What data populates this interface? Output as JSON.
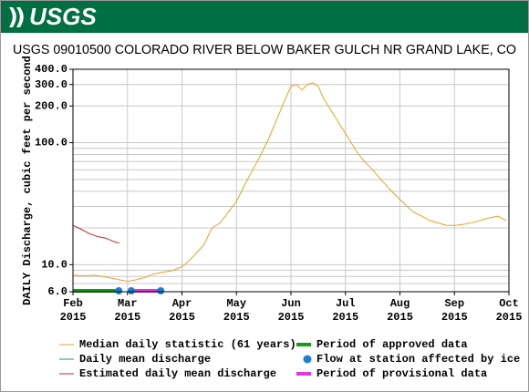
{
  "logo": "USGS",
  "chart_data": {
    "type": "line",
    "title": "USGS 09010500 COLORADO RIVER BELOW BAKER GULCH NR GRAND LAKE, CO",
    "y_label": "DAILY Discharge, cubic feet per second",
    "log_y": true,
    "grid": true,
    "xlim": [
      2,
      10
    ],
    "xticks": [
      {
        "value": 2,
        "label": "Feb 2015"
      },
      {
        "value": 3,
        "label": "Mar 2015"
      },
      {
        "value": 4,
        "label": "Apr 2015"
      },
      {
        "value": 5,
        "label": "May 2015"
      },
      {
        "value": 6,
        "label": "Jun 2015"
      },
      {
        "value": 7,
        "label": "Jul 2015"
      },
      {
        "value": 8,
        "label": "Aug 2015"
      },
      {
        "value": 9,
        "label": "Sep 2015"
      },
      {
        "value": 10,
        "label": "Oct 2015"
      }
    ],
    "ylim": [
      6,
      400
    ],
    "yticks": [
      {
        "value": 6,
        "label": "6.0"
      },
      {
        "value": 10,
        "label": "10.0"
      },
      {
        "value": 100,
        "label": "100.0"
      },
      {
        "value": 200,
        "label": "200.0"
      },
      {
        "value": 300,
        "label": "300.0"
      },
      {
        "value": 400,
        "label": "400.0"
      }
    ],
    "ygrid": [
      7,
      8,
      9,
      20,
      30,
      40,
      50,
      60,
      70,
      80,
      90
    ],
    "series": [
      {
        "name": "Median daily statistic (61 years)",
        "color": "#e5a323",
        "x": [
          2.0,
          2.2,
          2.4,
          2.6,
          2.8,
          3.0,
          3.15,
          3.3,
          3.45,
          3.6,
          3.8,
          4.0,
          4.15,
          4.3,
          4.4,
          4.55,
          4.7,
          4.85,
          5.0,
          5.15,
          5.3,
          5.45,
          5.6,
          5.75,
          5.9,
          6.0,
          6.1,
          6.2,
          6.3,
          6.4,
          6.5,
          6.6,
          6.75,
          6.9,
          7.05,
          7.2,
          7.35,
          7.5,
          7.65,
          7.8,
          7.95,
          8.1,
          8.25,
          8.4,
          8.55,
          8.7,
          8.85,
          9.0,
          9.2,
          9.4,
          9.6,
          9.8,
          9.95
        ],
        "values": [
          8.2,
          8.1,
          8.2,
          7.9,
          7.6,
          7.3,
          7.5,
          7.8,
          8.3,
          8.6,
          8.9,
          9.6,
          11,
          13,
          14.5,
          20,
          22,
          27,
          33,
          45,
          60,
          80,
          110,
          160,
          230,
          290,
          300,
          270,
          300,
          310,
          290,
          230,
          180,
          140,
          110,
          85,
          70,
          60,
          50,
          42,
          36,
          31,
          27,
          25,
          23,
          22,
          21,
          21,
          21.5,
          22.5,
          24,
          25,
          23
        ]
      },
      {
        "name": "Daily mean discharge",
        "color": "#1f8f8f",
        "x": [],
        "values": []
      },
      {
        "name": "Estimated daily mean discharge",
        "color": "#c0252f",
        "x": [
          2.0,
          2.05,
          2.15,
          2.3,
          2.45,
          2.6,
          2.75,
          2.85
        ],
        "values": [
          21,
          20.5,
          19.5,
          18,
          17,
          16.5,
          15.5,
          15
        ]
      }
    ],
    "periods": [
      {
        "name": "Period of approved data",
        "color": "#13a014",
        "start": 2,
        "end": 2.84
      },
      {
        "name": "Period of provisional data",
        "color": "#e038e0",
        "start": 3.07,
        "end": 3.61
      }
    ],
    "ice": {
      "name": "Flow at station affected by ice",
      "color": "#1a7fd6",
      "x": [
        2.84,
        3.07,
        3.61
      ]
    }
  }
}
